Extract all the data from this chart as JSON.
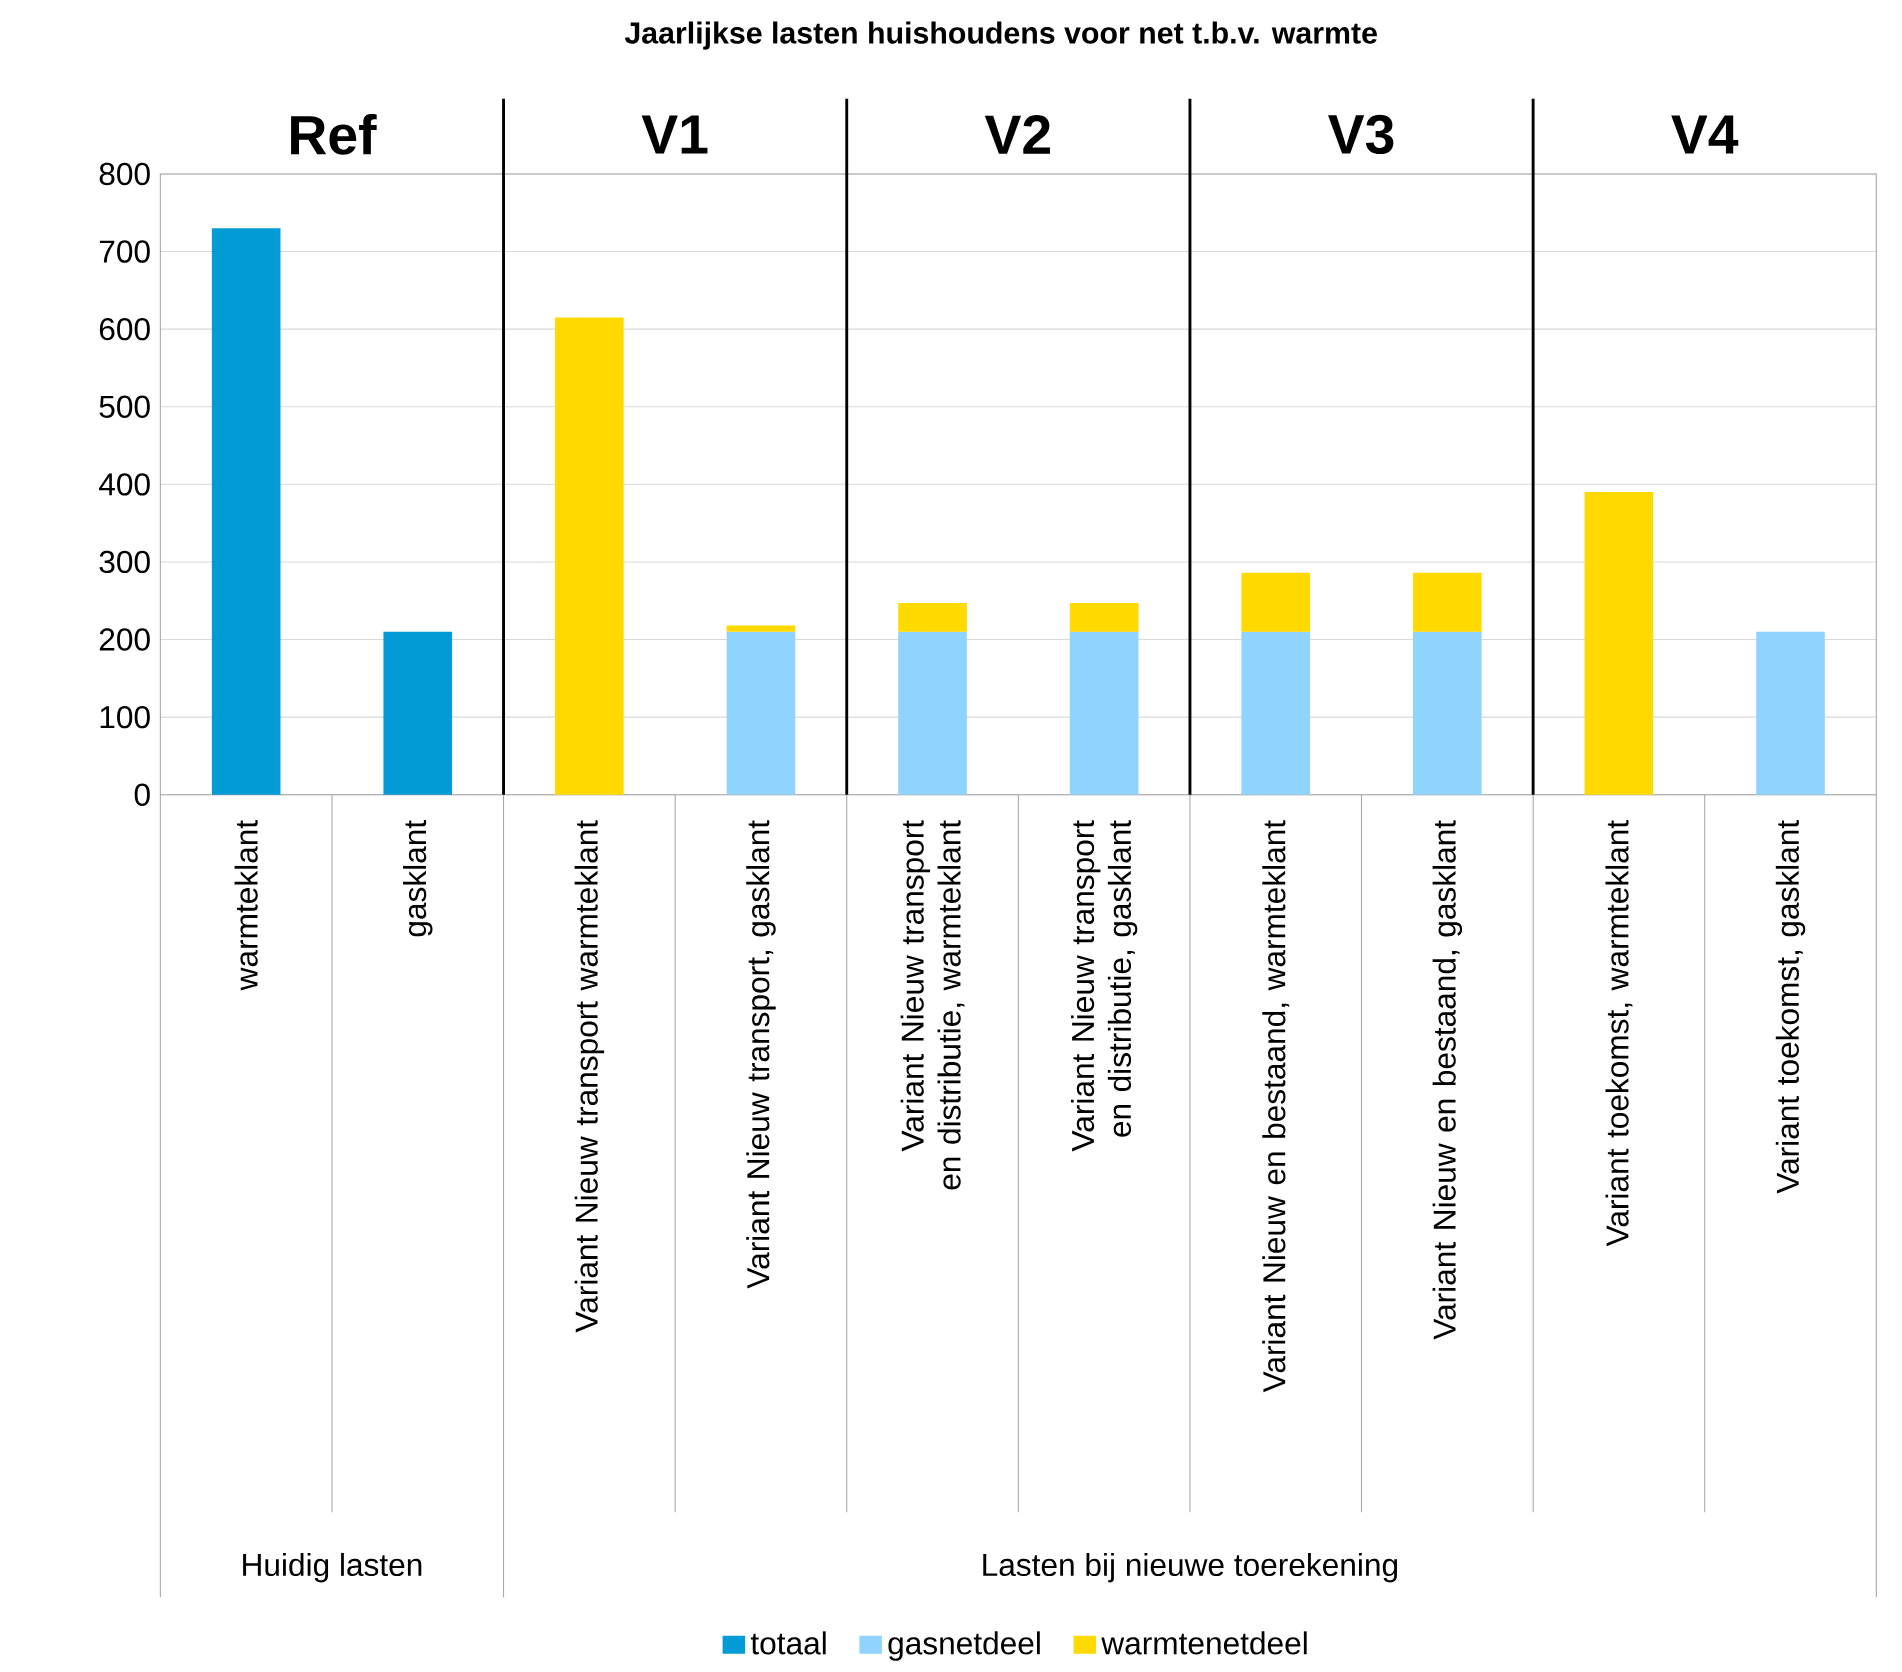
{
  "chart_data": {
    "type": "bar",
    "title": "Jaarlijkse lasten huishoudens voor net t.b.v. warmte",
    "stacked": true,
    "categories": [
      "warmteklant",
      "gasklant",
      "Variant Nieuw transport warmteklant",
      "Variant Nieuw transport, gasklant",
      "Variant Nieuw transport en distributie, warmteklant",
      "Variant Nieuw transport en distributie, gasklant",
      "Variant Nieuw en bestaand, warmteklant",
      "Variant Nieuw en bestaand, gasklant",
      "Variant toekomst, warmteklant",
      "Variant toekomst, gasklant"
    ],
    "series": [
      {
        "name": "totaal",
        "color": "#039bd5",
        "values": [
          730,
          210,
          null,
          null,
          null,
          null,
          null,
          null,
          null,
          null
        ]
      },
      {
        "name": "gasnetdeel",
        "color": "#8fd3fe",
        "values": [
          null,
          null,
          null,
          210,
          210,
          210,
          210,
          210,
          null,
          210
        ]
      },
      {
        "name": "warmtenetdeel",
        "color": "#ffd900",
        "values": [
          null,
          null,
          615,
          8,
          37,
          37,
          76,
          76,
          390,
          null
        ]
      }
    ],
    "ylim": [
      0,
      800
    ],
    "yticks": [
      0,
      100,
      200,
      300,
      400,
      500,
      600,
      700,
      800
    ],
    "grid": "y",
    "legend": "bottom",
    "annotations": [
      "Ref",
      "V1",
      "V2",
      "V3",
      "V4",
      "Huidig lasten",
      "Lasten bij nieuwe toerekening"
    ]
  }
}
